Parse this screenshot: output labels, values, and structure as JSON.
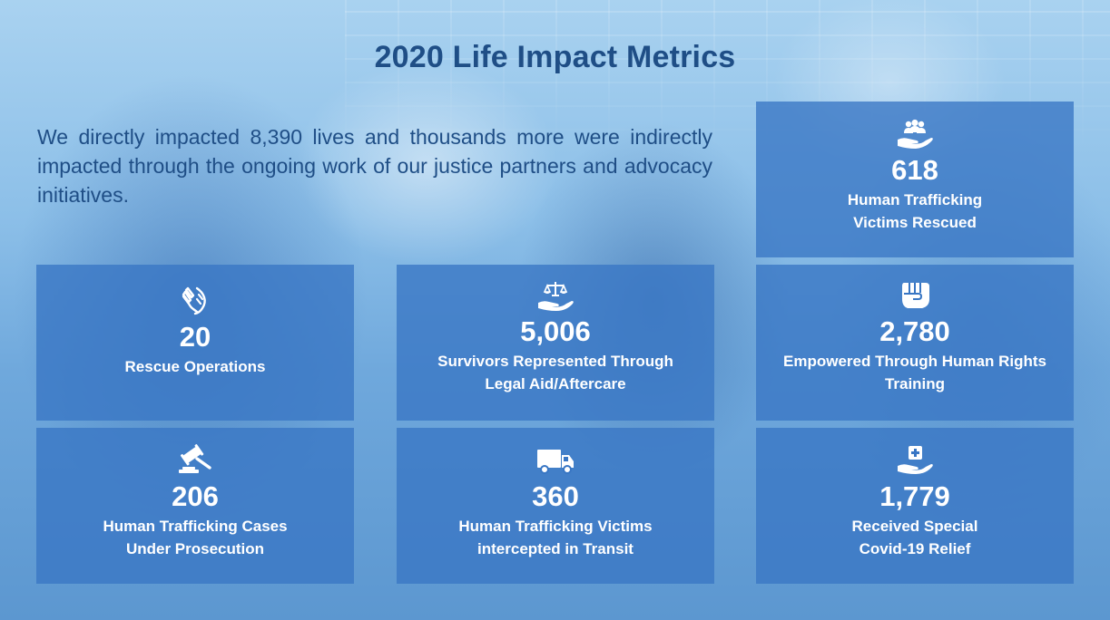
{
  "title": "2020 Life Impact Metrics",
  "intro": "We directly impacted 8,390 lives and thousands more were indirectly impacted through the ongoing work of our justice partners and advocacy initiatives.",
  "colors": {
    "title_text": "#1f4e86",
    "card_background": "#3876c4",
    "card_text": "#ffffff"
  },
  "metrics": [
    {
      "icon": "people-in-hand-icon",
      "value": "618",
      "label_lines": [
        "Human Trafficking",
        "Victims Rescued"
      ]
    },
    {
      "icon": "helping-hands-icon",
      "value": "20",
      "label_lines": [
        "Rescue Operations"
      ]
    },
    {
      "icon": "scales-in-hand-icon",
      "value": "5,006",
      "label_lines": [
        "Survivors Represented Through",
        "Legal Aid/Aftercare"
      ]
    },
    {
      "icon": "raised-fist-icon",
      "value": "2,780",
      "label_lines": [
        "Empowered Through Human Rights",
        "Training"
      ]
    },
    {
      "icon": "gavel-icon",
      "value": "206",
      "label_lines": [
        "Human Trafficking Cases",
        "Under Prosecution"
      ]
    },
    {
      "icon": "truck-icon",
      "value": "360",
      "label_lines": [
        "Human Trafficking Victims",
        "intercepted in Transit"
      ]
    },
    {
      "icon": "medical-cross-in-hand-icon",
      "value": "1,779",
      "label_lines": [
        "Received Special",
        "Covid-19 Relief"
      ]
    }
  ]
}
